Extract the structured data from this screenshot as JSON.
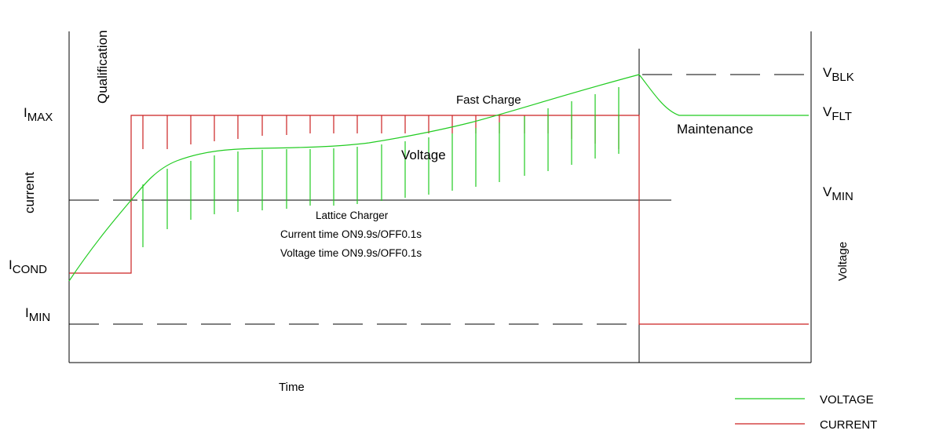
{
  "colors": {
    "voltage": "#22cc22",
    "current": "#cc2222",
    "frame": "#000000"
  },
  "labels": {
    "qualification": "Qualification",
    "current_axis": "current",
    "voltage_axis": "Voltage",
    "time": "Time",
    "fast_charge": "Fast Charge",
    "voltage_curve": "Voltage",
    "maintenance": "Maintenance",
    "lattice_title": "Lattice  Charger",
    "current_time": "Current time ON9.9s/OFF0.1s",
    "voltage_time": "Voltage time ON9.9s/OFF0.1s"
  },
  "left_levels": {
    "imax": {
      "main": "I",
      "sub": "MAX"
    },
    "icond": {
      "main": "I",
      "sub": "COND"
    },
    "imin": {
      "main": "I",
      "sub": "MIN"
    }
  },
  "right_levels": {
    "vblk": {
      "main": "V",
      "sub": "BLK"
    },
    "vflt": {
      "main": "V",
      "sub": "FLT"
    },
    "vmin": {
      "main": "V",
      "sub": "MIN"
    }
  },
  "legend": [
    {
      "label": "VOLTAGE",
      "color": "#22cc22"
    },
    {
      "label": "CURRENT",
      "color": "#cc2222"
    }
  ]
}
